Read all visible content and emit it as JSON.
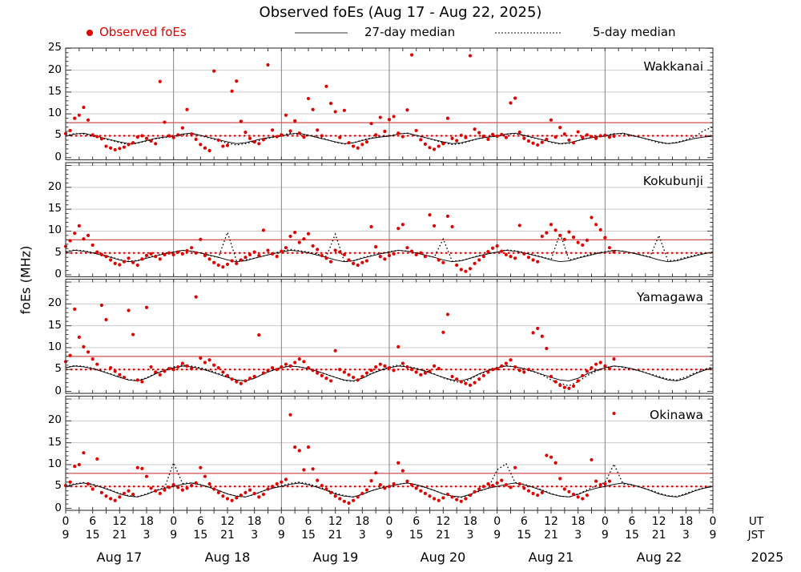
{
  "title": "Observed foEs (Aug 17 - Aug 22, 2025)",
  "legend": {
    "observed": "Observed foEs",
    "median27": "27-day median",
    "median5": "5-day median"
  },
  "ylabel": "foEs (MHz)",
  "axis": {
    "ut": "UT",
    "jst": "JST",
    "year": "2025",
    "days": [
      "Aug 17",
      "Aug 18",
      "Aug 19",
      "Aug 20",
      "Aug 21",
      "Aug 22"
    ],
    "ut_cycle": [
      "0",
      "6",
      "12",
      "18"
    ],
    "jst_cycle": [
      "9",
      "15",
      "21",
      "3"
    ],
    "hours_total": 144,
    "label_step_hours": 6,
    "minor_step_hours": 3
  },
  "colors": {
    "observed": "#e00000",
    "median": "#000000",
    "ref_solid": "#d05050",
    "ref_dotted": "#cc0000",
    "grid": "#cccccc",
    "dayline": "#808080",
    "border": "#3a3a3a",
    "legend_line": "#999999"
  },
  "chart_data": [
    {
      "type": "scatter",
      "station": "Wakkanai",
      "ylim": [
        -0.5,
        25.05
      ],
      "yticks": [
        0,
        5,
        10,
        15,
        20,
        25
      ],
      "ref_solid": 8,
      "ref_dotted": 5,
      "observed": {
        "t0": 0,
        "dt": 1,
        "values": [
          5.5,
          6.2,
          9.0,
          9.7,
          11.5,
          8.6,
          5.2,
          4.8,
          4.3,
          2.6,
          2.2,
          1.8,
          2.1,
          2.4,
          3.0,
          3.4,
          4.7,
          5.0,
          4.4,
          3.8,
          3.2,
          17.4,
          8.1,
          5.0,
          4.6,
          5.2,
          6.8,
          11.0,
          5.4,
          4.2,
          3.0,
          2.2,
          1.6,
          19.8,
          4.0,
          2.6,
          2.8,
          15.2,
          17.5,
          8.3,
          5.8,
          4.4,
          3.6,
          3.2,
          4.1,
          21.2,
          6.3,
          4.8,
          5.2,
          9.7,
          6.1,
          8.4,
          5.6,
          4.7,
          13.5,
          11.0,
          6.3,
          5.0,
          16.3,
          12.4,
          10.5,
          4.6,
          10.8,
          3.4,
          2.6,
          2.2,
          3.0,
          3.6,
          7.8,
          5.2,
          9.2,
          6.0,
          8.7,
          9.4,
          5.6,
          4.8,
          10.9,
          23.5,
          6.2,
          4.1,
          3.1,
          2.3,
          1.9,
          2.6,
          3.2,
          9.0,
          4.4,
          3.9,
          5.1,
          4.6,
          23.3,
          6.5,
          5.7,
          4.9,
          4.2,
          5.3,
          4.9,
          5.3,
          4.6,
          12.5,
          13.6,
          5.8,
          4.4,
          3.8,
          3.3,
          2.9,
          3.5,
          4.2,
          8.6,
          4.7,
          6.9,
          5.4,
          4.0,
          3.4,
          5.9,
          4.6,
          5.2,
          4.8,
          4.4,
          5.0,
          5.1,
          4.7,
          4.9
        ]
      },
      "median27": {
        "t0": 0,
        "dt": 2,
        "values": [
          4.9,
          5.4,
          5.6,
          5.1,
          4.6,
          4.1,
          3.6,
          3.2,
          3.4,
          3.9,
          4.4,
          4.7,
          4.9,
          5.4,
          5.6,
          5.1,
          4.6,
          4.1,
          3.6,
          3.2,
          3.4,
          3.9,
          4.4,
          4.7,
          4.9,
          5.4,
          5.6,
          5.1,
          4.6,
          4.1,
          3.6,
          3.2,
          3.4,
          3.9,
          4.4,
          4.7,
          4.9,
          5.4,
          5.6,
          5.1,
          4.6,
          4.1,
          3.6,
          3.2,
          3.4,
          3.9,
          4.4,
          4.7,
          4.9,
          5.4,
          5.6,
          5.1,
          4.6,
          4.1,
          3.6,
          3.2,
          3.4,
          3.9,
          4.4,
          4.7,
          4.9,
          5.4,
          5.6,
          5.1,
          4.6,
          4.1,
          3.6,
          3.2,
          3.4,
          3.9,
          4.4,
          4.7,
          4.9
        ]
      },
      "median5": {
        "t0": 0,
        "dt": 2,
        "values": [
          5.0,
          5.5,
          5.4,
          4.9,
          4.4,
          4.0,
          3.4,
          3.0,
          3.3,
          3.8,
          4.3,
          4.6,
          4.8,
          5.2,
          5.5,
          5.0,
          4.5,
          3.9,
          3.3,
          2.9,
          3.2,
          3.7,
          4.2,
          4.6,
          5.1,
          5.6,
          5.3,
          5.2,
          4.7,
          4.2,
          3.5,
          3.1,
          3.4,
          4.0,
          4.5,
          4.8,
          5.0,
          5.4,
          5.6,
          5.0,
          4.6,
          4.0,
          3.4,
          3.0,
          3.2,
          3.8,
          4.4,
          4.7,
          4.9,
          5.3,
          5.5,
          5.1,
          4.5,
          4.1,
          3.5,
          3.1,
          3.3,
          3.9,
          4.4,
          4.8,
          5.0,
          5.5,
          5.4,
          5.0,
          4.6,
          4.0,
          3.4,
          3.2,
          3.5,
          4.1,
          4.8,
          6.2,
          7.0
        ]
      }
    },
    {
      "type": "scatter",
      "station": "Kokubunji",
      "ylim": [
        -0.45,
        25.65
      ],
      "yticks": [
        0,
        5,
        10,
        15,
        20
      ],
      "ref_solid": 8,
      "ref_dotted": 5,
      "observed": {
        "t0": 0,
        "dt": 1,
        "values": [
          6.5,
          7.8,
          9.5,
          11.2,
          8.2,
          9.0,
          6.8,
          5.2,
          4.6,
          4.2,
          3.4,
          2.6,
          2.3,
          3.0,
          3.8,
          2.8,
          2.2,
          3.6,
          4.4,
          4.8,
          4.2,
          3.6,
          4.6,
          5.0,
          4.6,
          5.2,
          4.8,
          5.5,
          6.2,
          5.0,
          8.1,
          4.4,
          3.6,
          2.8,
          2.2,
          1.8,
          2.4,
          3.2,
          2.6,
          3.4,
          4.0,
          4.6,
          5.2,
          4.4,
          10.2,
          5.6,
          4.8,
          4.2,
          5.4,
          6.2,
          8.8,
          9.7,
          7.4,
          8.2,
          9.4,
          6.6,
          5.8,
          4.4,
          3.8,
          3.0,
          5.6,
          5.2,
          4.6,
          3.4,
          2.6,
          2.2,
          2.8,
          3.2,
          11.0,
          6.4,
          4.2,
          3.6,
          4.4,
          4.8,
          10.6,
          11.5,
          6.2,
          5.4,
          4.6,
          5.0,
          4.2,
          13.7,
          11.2,
          3.4,
          2.8,
          13.4,
          11.0,
          2.2,
          1.2,
          0.8,
          1.4,
          2.6,
          3.4,
          4.2,
          5.3,
          6.1,
          6.6,
          5.4,
          4.6,
          4.2,
          3.8,
          11.3,
          4.8,
          4.0,
          3.4,
          3.0,
          8.8,
          9.6,
          11.5,
          10.2,
          9.0,
          8.1,
          9.8,
          8.6,
          7.4,
          6.8,
          7.9,
          13.1,
          11.5,
          10.3,
          8.5,
          6.2,
          5.2
        ]
      },
      "median27": {
        "t0": 0,
        "dt": 2,
        "values": [
          5.2,
          5.6,
          5.4,
          5.0,
          4.5,
          4.0,
          3.4,
          3.0,
          3.2,
          3.8,
          4.3,
          4.8,
          5.2,
          5.6,
          5.4,
          5.0,
          4.5,
          4.0,
          3.4,
          3.0,
          3.2,
          3.8,
          4.3,
          4.8,
          5.2,
          5.6,
          5.4,
          5.0,
          4.5,
          4.0,
          3.4,
          3.0,
          3.2,
          3.8,
          4.3,
          4.8,
          5.2,
          5.6,
          5.4,
          5.0,
          4.5,
          4.0,
          3.4,
          3.0,
          3.2,
          3.8,
          4.3,
          4.8,
          5.2,
          5.6,
          5.4,
          5.0,
          4.5,
          4.0,
          3.4,
          3.0,
          3.2,
          3.8,
          4.3,
          4.8,
          5.2,
          5.6,
          5.4,
          5.0,
          4.5,
          4.0,
          3.4,
          3.0,
          3.2,
          3.8,
          4.3,
          4.8,
          5.2
        ]
      },
      "median5": {
        "t0": 0,
        "dt": 2,
        "values": [
          5.3,
          5.7,
          5.5,
          5.1,
          4.6,
          4.1,
          3.5,
          3.1,
          3.3,
          3.9,
          4.4,
          4.9,
          5.2,
          5.6,
          5.4,
          5.0,
          4.4,
          4.0,
          9.7,
          3.2,
          3.4,
          3.8,
          4.3,
          4.8,
          5.4,
          5.8,
          5.5,
          5.2,
          4.7,
          4.2,
          9.3,
          3.0,
          3.2,
          3.9,
          4.4,
          4.9,
          5.3,
          5.6,
          5.4,
          5.0,
          4.5,
          4.0,
          8.2,
          3.1,
          3.3,
          3.8,
          4.4,
          4.8,
          5.2,
          5.7,
          5.5,
          5.1,
          4.6,
          4.1,
          3.5,
          9.5,
          3.4,
          3.9,
          4.5,
          5.0,
          5.3,
          5.6,
          5.4,
          5.0,
          4.6,
          4.1,
          9.0,
          3.2,
          3.4,
          4.0,
          4.5,
          4.9,
          5.2
        ]
      }
    },
    {
      "type": "scatter",
      "station": "Yamagawa",
      "ylim": [
        -0.45,
        25.65
      ],
      "yticks": [
        0,
        5,
        10,
        15,
        20
      ],
      "ref_solid": 8,
      "ref_dotted": 5,
      "observed": {
        "t0": 0,
        "dt": 1,
        "values": [
          6.8,
          8.2,
          18.8,
          12.4,
          10.2,
          9.0,
          7.4,
          6.2,
          19.7,
          16.4,
          5.4,
          4.6,
          3.8,
          3.2,
          18.5,
          13.0,
          2.6,
          2.2,
          19.2,
          5.6,
          4.4,
          3.8,
          4.6,
          5.2,
          5.0,
          5.6,
          6.4,
          5.8,
          5.2,
          21.6,
          7.6,
          6.6,
          7.2,
          6.0,
          5.4,
          4.4,
          3.6,
          2.8,
          2.2,
          1.8,
          2.4,
          3.0,
          3.4,
          12.9,
          4.2,
          4.8,
          5.4,
          5.0,
          5.6,
          6.2,
          5.8,
          6.6,
          7.4,
          6.8,
          5.4,
          4.8,
          4.2,
          3.6,
          3.0,
          2.4,
          9.3,
          5.0,
          4.4,
          3.8,
          3.2,
          2.6,
          3.4,
          4.2,
          4.8,
          5.6,
          6.2,
          5.8,
          5.4,
          4.8,
          10.2,
          6.4,
          5.6,
          5.0,
          4.4,
          3.8,
          4.2,
          4.6,
          5.8,
          5.2,
          13.5,
          17.6,
          3.4,
          2.8,
          2.2,
          1.8,
          1.4,
          2.0,
          2.8,
          3.6,
          4.4,
          5.0,
          5.2,
          5.8,
          6.4,
          7.2,
          5.6,
          4.8,
          4.4,
          5.0,
          13.4,
          14.4,
          12.6,
          9.8,
          3.4,
          2.2,
          1.4,
          0.9,
          0.7,
          1.2,
          2.4,
          3.6,
          4.6,
          5.4,
          6.2,
          6.6,
          5.8,
          5.2,
          7.4
        ]
      },
      "median27": {
        "t0": 0,
        "dt": 2,
        "values": [
          5.4,
          5.8,
          5.6,
          5.2,
          4.6,
          3.9,
          3.2,
          2.6,
          2.4,
          3.0,
          4.0,
          4.8,
          5.4,
          5.8,
          5.6,
          5.2,
          4.6,
          3.9,
          3.2,
          2.6,
          2.4,
          3.0,
          4.0,
          4.8,
          5.4,
          5.8,
          5.6,
          5.2,
          4.6,
          3.9,
          3.2,
          2.6,
          2.4,
          3.0,
          4.0,
          4.8,
          5.4,
          5.8,
          5.6,
          5.2,
          4.6,
          3.9,
          3.2,
          2.6,
          2.4,
          3.0,
          4.0,
          4.8,
          5.4,
          5.8,
          5.6,
          5.2,
          4.6,
          3.9,
          3.2,
          2.6,
          2.4,
          3.0,
          4.0,
          4.8,
          5.4,
          5.8,
          5.6,
          5.2,
          4.6,
          3.9,
          3.2,
          2.6,
          2.4,
          3.0,
          4.0,
          4.8,
          5.4
        ]
      },
      "median5": {
        "t0": 0,
        "dt": 2,
        "values": [
          5.5,
          5.9,
          5.7,
          5.3,
          4.7,
          4.0,
          3.3,
          2.7,
          2.5,
          3.1,
          4.1,
          4.9,
          5.6,
          6.0,
          5.8,
          5.4,
          4.8,
          4.1,
          3.4,
          2.6,
          2.4,
          3.0,
          4.0,
          4.8,
          5.5,
          5.8,
          5.6,
          5.2,
          4.6,
          3.9,
          3.2,
          2.5,
          2.3,
          3.1,
          4.1,
          4.9,
          5.6,
          6.0,
          5.7,
          5.3,
          4.7,
          4.0,
          3.1,
          2.4,
          2.0,
          2.8,
          3.9,
          4.7,
          5.5,
          5.9,
          5.6,
          5.2,
          4.5,
          3.8,
          2.6,
          1.8,
          1.3,
          2.2,
          3.6,
          4.6,
          5.4,
          5.8,
          5.5,
          5.1,
          4.6,
          4.0,
          3.4,
          2.8,
          2.6,
          3.3,
          4.2,
          5.0,
          5.6
        ]
      }
    },
    {
      "type": "scatter",
      "station": "Okinawa",
      "ylim": [
        -0.45,
        25.65
      ],
      "yticks": [
        0,
        5,
        10,
        15,
        20
      ],
      "ref_solid": 8,
      "ref_dotted": 5,
      "observed": {
        "t0": 0,
        "dt": 1,
        "values": [
          5.2,
          6.0,
          9.6,
          10.0,
          12.7,
          5.6,
          4.4,
          11.3,
          3.6,
          2.8,
          2.2,
          1.8,
          2.6,
          3.4,
          4.0,
          3.2,
          9.3,
          9.1,
          7.3,
          4.6,
          4.0,
          3.4,
          4.2,
          4.8,
          5.4,
          4.8,
          4.2,
          4.6,
          5.2,
          5.8,
          9.3,
          7.3,
          5.6,
          4.4,
          3.6,
          2.8,
          2.2,
          1.8,
          2.4,
          3.0,
          3.6,
          4.2,
          3.4,
          2.6,
          3.2,
          4.4,
          5.0,
          5.6,
          6.0,
          6.6,
          21.4,
          14.0,
          13.2,
          8.8,
          14.0,
          9.0,
          6.4,
          5.2,
          4.4,
          3.6,
          2.8,
          2.2,
          1.6,
          1.2,
          1.8,
          2.6,
          3.4,
          4.2,
          6.3,
          8.1,
          5.4,
          4.6,
          5.0,
          5.6,
          10.4,
          8.6,
          6.2,
          5.4,
          4.6,
          4.0,
          3.4,
          2.8,
          2.2,
          1.8,
          2.4,
          3.2,
          2.6,
          2.0,
          1.6,
          2.2,
          3.0,
          3.8,
          4.4,
          5.0,
          5.6,
          5.2,
          5.8,
          6.4,
          5.4,
          4.8,
          9.3,
          5.6,
          4.6,
          4.0,
          3.4,
          3.0,
          3.6,
          12.1,
          11.7,
          10.4,
          6.8,
          4.4,
          3.8,
          3.2,
          2.6,
          2.2,
          3.0,
          11.1,
          6.2,
          5.4,
          5.6,
          6.2,
          21.7
        ]
      },
      "median27": {
        "t0": 0,
        "dt": 2,
        "values": [
          5.0,
          5.5,
          5.8,
          5.4,
          4.8,
          4.1,
          3.3,
          2.8,
          2.6,
          3.2,
          4.0,
          4.6,
          5.0,
          5.5,
          5.8,
          5.4,
          4.8,
          4.1,
          3.3,
          2.8,
          2.6,
          3.2,
          4.0,
          4.6,
          5.0,
          5.5,
          5.8,
          5.4,
          4.8,
          4.1,
          3.3,
          2.8,
          2.6,
          3.2,
          4.0,
          4.6,
          5.0,
          5.5,
          5.8,
          5.4,
          4.8,
          4.1,
          3.3,
          2.8,
          2.6,
          3.2,
          4.0,
          4.6,
          5.0,
          5.5,
          5.8,
          5.4,
          4.8,
          4.1,
          3.3,
          2.8,
          2.6,
          3.2,
          4.0,
          4.6,
          5.0,
          5.5,
          5.8,
          5.4,
          4.8,
          4.1,
          3.3,
          2.8,
          2.6,
          3.2,
          4.0,
          4.6,
          5.0
        ]
      },
      "median5": {
        "t0": 0,
        "dt": 2,
        "values": [
          5.1,
          5.6,
          5.9,
          5.5,
          4.9,
          4.2,
          3.4,
          2.9,
          2.7,
          3.3,
          4.1,
          4.7,
          10.4,
          5.7,
          5.8,
          5.4,
          4.8,
          4.1,
          3.3,
          2.8,
          2.6,
          3.2,
          4.0,
          4.6,
          5.2,
          5.7,
          6.0,
          5.6,
          5.0,
          4.3,
          3.5,
          2.9,
          2.6,
          3.2,
          4.0,
          4.7,
          5.1,
          5.5,
          5.8,
          5.4,
          4.8,
          4.1,
          3.3,
          2.7,
          2.5,
          3.1,
          3.9,
          4.6,
          8.8,
          10.2,
          5.9,
          5.5,
          4.9,
          4.2,
          3.4,
          2.8,
          2.6,
          3.3,
          4.2,
          5.2,
          5.9,
          10.1,
          5.6,
          5.3,
          4.8,
          4.2,
          3.5,
          2.9,
          2.7,
          3.4,
          4.1,
          4.7,
          5.0
        ]
      }
    }
  ]
}
